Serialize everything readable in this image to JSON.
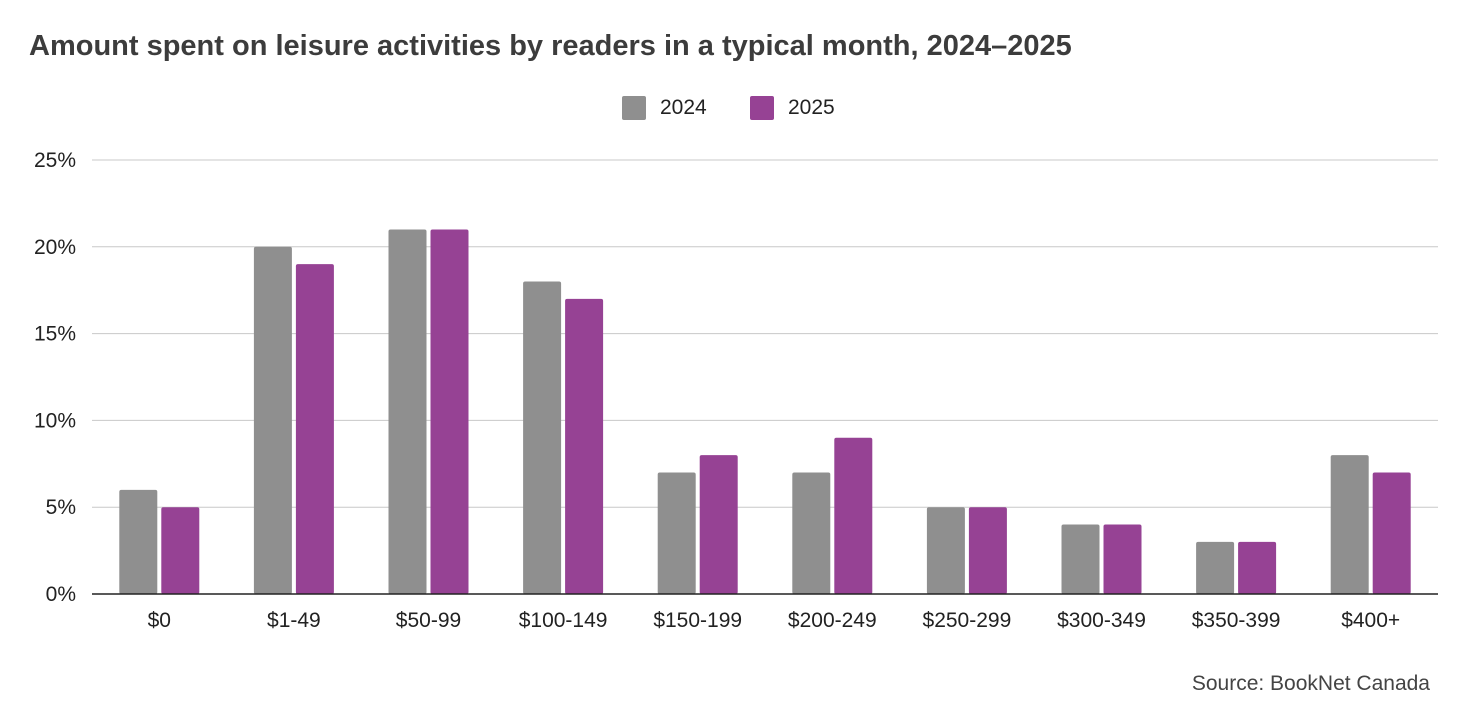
{
  "title": "Amount spent on leisure activities by readers in a typical month, 2024–2025",
  "source": "Source: BookNet Canada",
  "chart_data": {
    "type": "bar",
    "categories": [
      "$0",
      "$1-49",
      "$50-99",
      "$100-149",
      "$150-199",
      "$200-249",
      "$250-299",
      "$300-349",
      "$350-399",
      "$400+"
    ],
    "series": [
      {
        "name": "2024",
        "color": "#8f8f8f",
        "values": [
          6,
          20,
          21,
          18,
          7,
          7,
          5,
          4,
          3,
          8
        ]
      },
      {
        "name": "2025",
        "color": "#964294",
        "values": [
          5,
          19,
          21,
          17,
          8,
          9,
          5,
          4,
          3,
          7
        ]
      }
    ],
    "y_ticks": [
      "0%",
      "5%",
      "10%",
      "15%",
      "20%",
      "25%"
    ],
    "ylim": [
      0,
      25
    ],
    "grid": true,
    "legend_position": "top-center"
  }
}
